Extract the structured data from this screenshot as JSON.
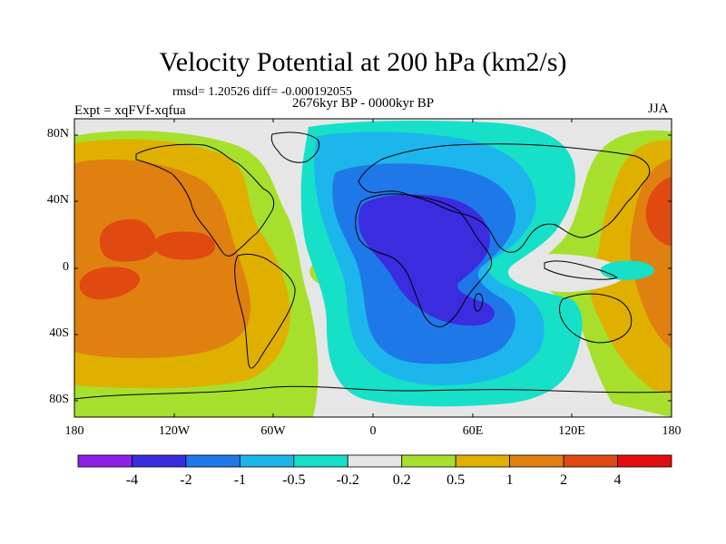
{
  "title": "Velocity Potential at 200 hPa (km2/s)",
  "stats": "rmsd= 1.20526 diff= -0.000192055",
  "period": "2676kyr BP - 0000kyr BP",
  "experiment": "Expt = xqFVf-xqfua",
  "season": "JJA",
  "map": {
    "projection": "cylindrical equidistant",
    "lat_range": [
      -90,
      90
    ],
    "lon_range": [
      -180,
      180
    ],
    "lat_ticks": [
      "80N",
      "40N",
      "0",
      "40S",
      "80S"
    ],
    "lon_ticks": [
      "180",
      "120W",
      "60W",
      "0",
      "60E",
      "120E",
      "180"
    ],
    "background_color": "#e6e6e6"
  },
  "colorbar": {
    "labels": [
      "-4",
      "-2",
      "-1",
      "-0.5",
      "-0.2",
      "0.2",
      "0.5",
      "1",
      "2",
      "4"
    ],
    "colors": [
      "#8f20e8",
      "#3b2ce0",
      "#1f78e8",
      "#1cb6ec",
      "#16e0c8",
      "#e6e6e6",
      "#a6e02c",
      "#e0b000",
      "#e08010",
      "#e04a10",
      "#e01010"
    ]
  }
}
